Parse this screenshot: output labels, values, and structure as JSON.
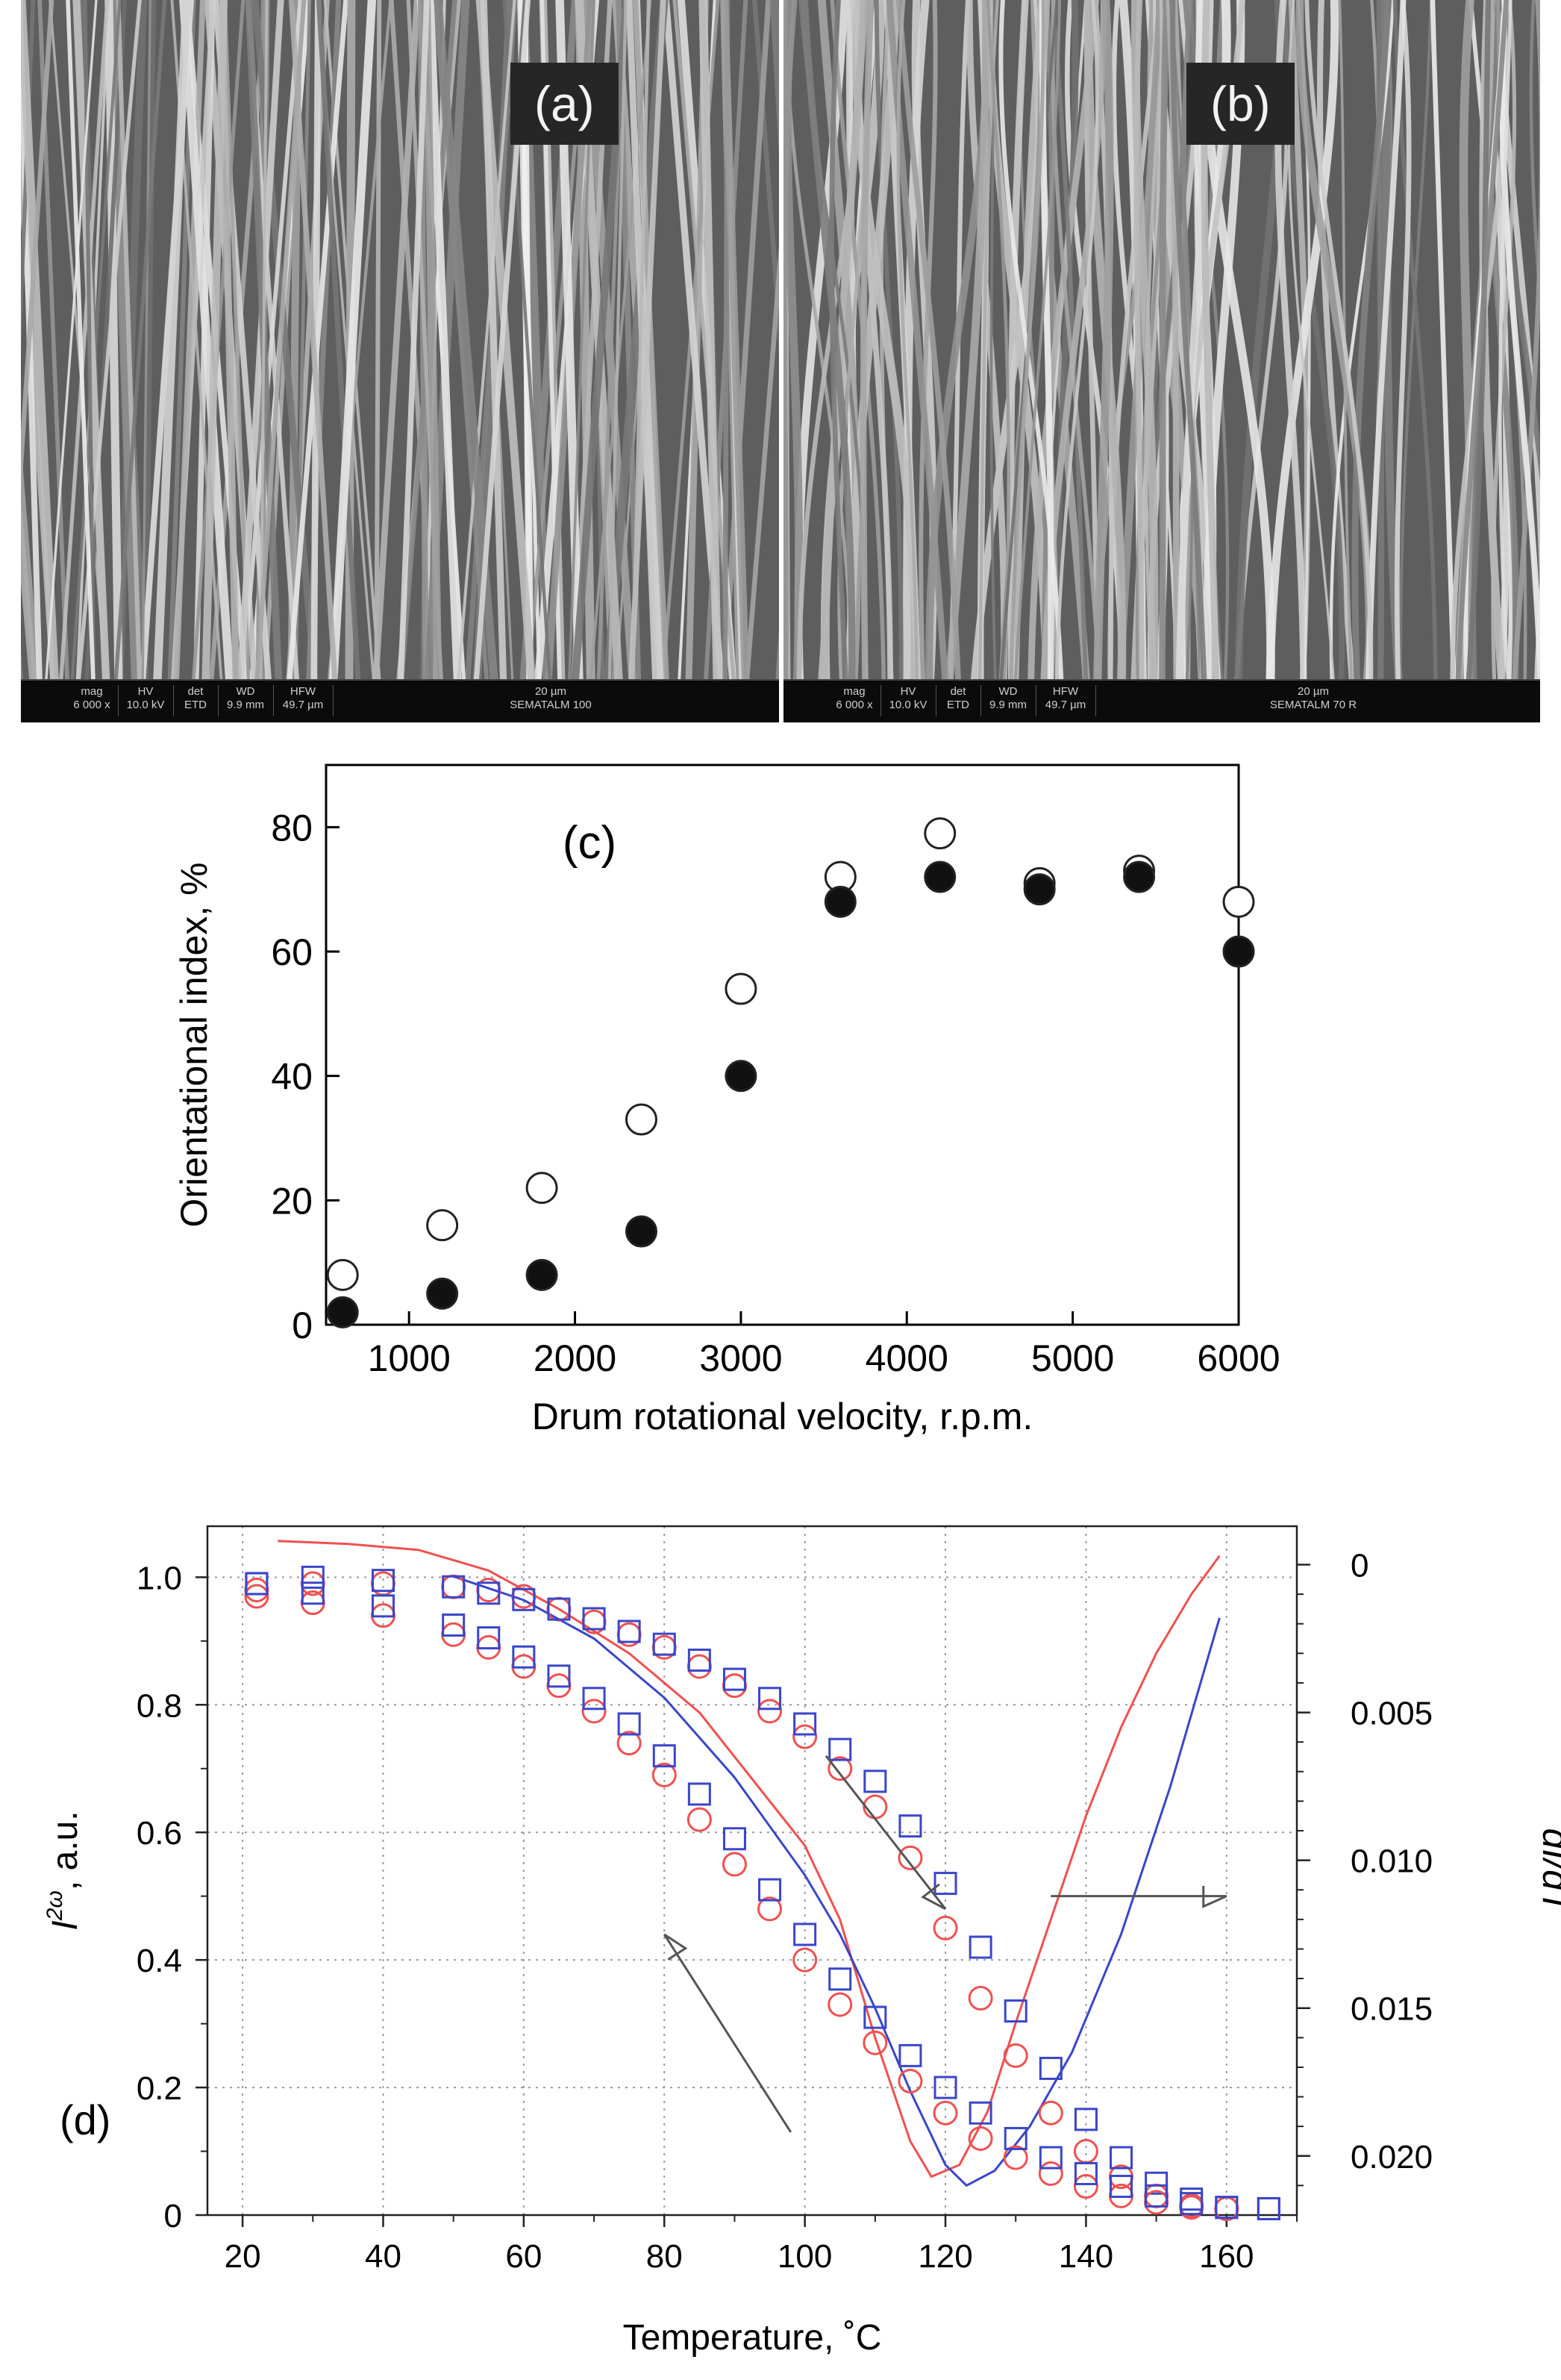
{
  "panels": {
    "a": {
      "label": "(a)",
      "databar": {
        "headers": [
          "mag",
          "HV",
          "det",
          "WD",
          "HFW"
        ],
        "values": [
          "6 000 x",
          "10.0 kV",
          "ETD",
          "9.9 mm",
          "49.7 µm"
        ],
        "scale": "20 µm",
        "caption": "SEMATALM 100"
      }
    },
    "b": {
      "label": "(b)",
      "databar": {
        "headers": [
          "mag",
          "HV",
          "det",
          "WD",
          "HFW"
        ],
        "values": [
          "6 000 x",
          "10.0 kV",
          "ETD",
          "9.9 mm",
          "49.7 µm"
        ],
        "scale": "20 µm",
        "caption": "SEMATALM 70 R"
      }
    }
  },
  "chart_data": [
    {
      "type": "scatter",
      "panel_label": "(c)",
      "xlabel": "Drum rotational velocity, r.p.m.",
      "ylabel": "Orientational index, %",
      "xlim": [
        500,
        6000
      ],
      "ylim": [
        0,
        90
      ],
      "xticks": [
        1000,
        2000,
        3000,
        4000,
        5000,
        6000
      ],
      "yticks": [
        0,
        20,
        40,
        60,
        80
      ],
      "grid": false,
      "series": [
        {
          "marker": "open-circle",
          "x": [
            600,
            1200,
            1800,
            2400,
            3000,
            3600,
            4200,
            4800,
            5400,
            6000
          ],
          "y": [
            8,
            16,
            22,
            33,
            54,
            72,
            79,
            71,
            73,
            68
          ]
        },
        {
          "marker": "filled-circle",
          "x": [
            600,
            1200,
            1800,
            2400,
            3000,
            3600,
            4200,
            4800,
            5400,
            6000
          ],
          "y": [
            2,
            5,
            8,
            15,
            40,
            68,
            72,
            70,
            72,
            60
          ]
        }
      ]
    },
    {
      "type": "line",
      "panel_label": "(d)",
      "xlabel": "Temperature, ˚C",
      "ylabel": "I, a.u.",
      "ylabel_superscript": "2ω",
      "y2label": "dI/dT",
      "xlim": [
        15,
        170
      ],
      "ylim": [
        0,
        1.08
      ],
      "y2lim": [
        -0.0013,
        0.022
      ],
      "xticks": [
        20,
        40,
        60,
        80,
        100,
        120,
        140,
        160
      ],
      "yticks": [
        0,
        0.2,
        0.4,
        0.6,
        0.8,
        1.0
      ],
      "ytick_labels": [
        "0",
        "0.2",
        "0.4",
        "0.6",
        "0.8",
        "1.0"
      ],
      "y2ticks": [
        0,
        0.005,
        0.01,
        0.015,
        0.02
      ],
      "y2tick_labels": [
        "0",
        "0.005",
        "0.010",
        "0.015",
        "0.020"
      ],
      "y2_inverted": true,
      "grid": true,
      "colors": {
        "red": "#f05050",
        "blue": "#3a46c8"
      },
      "series": [
        {
          "color": "red",
          "marker": "open-circle",
          "axis": "left",
          "direction": "heating",
          "x": [
            22,
            30,
            40,
            50,
            55,
            60,
            65,
            70,
            75,
            80,
            85,
            90,
            95,
            100,
            105,
            110,
            115,
            120,
            125,
            130,
            135,
            140,
            145,
            150,
            155,
            160
          ],
          "y": [
            0.98,
            0.99,
            0.99,
            0.985,
            0.98,
            0.97,
            0.95,
            0.93,
            0.91,
            0.89,
            0.86,
            0.83,
            0.79,
            0.75,
            0.7,
            0.64,
            0.56,
            0.45,
            0.34,
            0.25,
            0.16,
            0.1,
            0.06,
            0.03,
            0.015,
            0.01
          ]
        },
        {
          "color": "blue",
          "marker": "open-square",
          "axis": "left",
          "direction": "heating",
          "x": [
            22,
            30,
            40,
            50,
            55,
            60,
            65,
            70,
            75,
            80,
            85,
            90,
            95,
            100,
            105,
            110,
            115,
            120,
            125,
            130,
            135,
            140,
            145,
            150,
            155,
            160,
            166
          ],
          "y": [
            0.99,
            1.0,
            0.995,
            0.985,
            0.975,
            0.965,
            0.95,
            0.935,
            0.915,
            0.895,
            0.87,
            0.84,
            0.81,
            0.77,
            0.73,
            0.68,
            0.61,
            0.52,
            0.42,
            0.32,
            0.23,
            0.15,
            0.09,
            0.05,
            0.025,
            0.012,
            0.01
          ]
        },
        {
          "color": "red",
          "marker": "open-circle",
          "axis": "left",
          "direction": "cooling",
          "x": [
            22,
            30,
            40,
            50,
            55,
            60,
            65,
            70,
            75,
            80,
            85,
            90,
            95,
            100,
            105,
            110,
            115,
            120,
            125,
            130,
            135,
            140,
            145,
            150,
            155,
            160
          ],
          "y": [
            0.97,
            0.96,
            0.94,
            0.91,
            0.89,
            0.86,
            0.83,
            0.79,
            0.74,
            0.69,
            0.62,
            0.55,
            0.48,
            0.4,
            0.33,
            0.27,
            0.21,
            0.16,
            0.12,
            0.09,
            0.065,
            0.045,
            0.03,
            0.02,
            0.012,
            0.01
          ]
        },
        {
          "color": "blue",
          "marker": "open-square",
          "axis": "left",
          "direction": "cooling",
          "x": [
            22,
            30,
            40,
            50,
            55,
            60,
            65,
            70,
            75,
            80,
            85,
            90,
            95,
            100,
            105,
            110,
            115,
            120,
            125,
            130,
            135,
            140,
            145,
            150,
            155,
            160,
            166
          ],
          "y": [
            0.99,
            0.975,
            0.955,
            0.925,
            0.905,
            0.875,
            0.845,
            0.81,
            0.77,
            0.72,
            0.66,
            0.59,
            0.51,
            0.44,
            0.37,
            0.31,
            0.25,
            0.2,
            0.16,
            0.12,
            0.09,
            0.065,
            0.045,
            0.03,
            0.018,
            0.012,
            0.01
          ]
        },
        {
          "color": "red",
          "marker": "none",
          "axis": "right",
          "x": [
            25,
            35,
            45,
            55,
            65,
            75,
            85,
            95,
            100,
            105,
            110,
            115,
            118,
            122,
            126,
            130,
            135,
            140,
            145,
            150,
            155,
            159
          ],
          "y": [
            -0.0008,
            -0.0007,
            -0.0005,
            0.0002,
            0.0015,
            0.003,
            0.005,
            0.008,
            0.0095,
            0.012,
            0.016,
            0.0195,
            0.0207,
            0.0203,
            0.0185,
            0.0155,
            0.012,
            0.0085,
            0.0055,
            0.003,
            0.001,
            -0.0003
          ]
        },
        {
          "color": "blue",
          "marker": "none",
          "axis": "right",
          "x": [
            50,
            60,
            70,
            80,
            90,
            100,
            105,
            110,
            115,
            120,
            123,
            127,
            132,
            138,
            145,
            152,
            159
          ],
          "y": [
            0.0004,
            0.0012,
            0.0025,
            0.0045,
            0.0072,
            0.0105,
            0.0125,
            0.015,
            0.0178,
            0.0203,
            0.021,
            0.0205,
            0.019,
            0.0165,
            0.0125,
            0.0075,
            0.0018
          ]
        }
      ]
    }
  ]
}
